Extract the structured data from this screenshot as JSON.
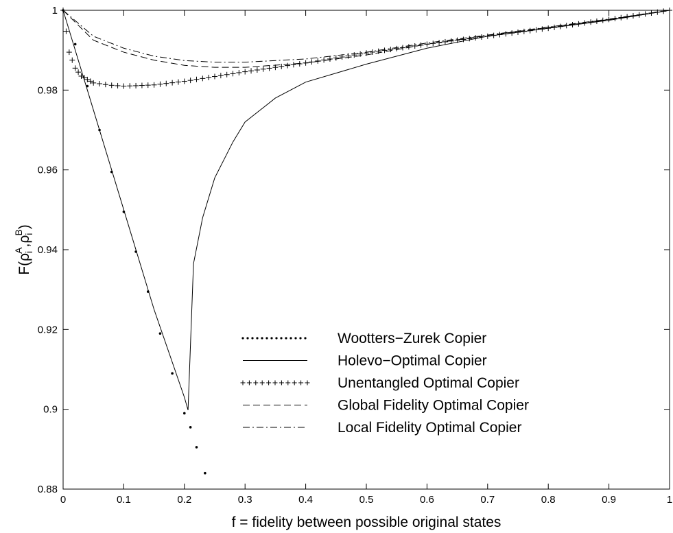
{
  "chart_data": {
    "type": "line",
    "xlabel": "f = fidelity between possible original states",
    "ylabel": "F(ρiA,ρiB)",
    "ylabel_parts": {
      "base": "F(ρ",
      "sub1": "i",
      "sup1": "A",
      "sep": ",ρ",
      "sub2": "i",
      "sup2": "B",
      "close": ")"
    },
    "xlim": [
      0,
      1
    ],
    "ylim": [
      0.88,
      1
    ],
    "xticks": [
      0,
      0.1,
      0.2,
      0.3,
      0.4,
      0.5,
      0.6,
      0.7,
      0.8,
      0.9,
      1
    ],
    "xtick_labels": [
      "0",
      "0.1",
      "0.2",
      "0.3",
      "0.4",
      "0.5",
      "0.6",
      "0.7",
      "0.8",
      "0.9",
      "1"
    ],
    "yticks": [
      0.88,
      0.9,
      0.92,
      0.94,
      0.96,
      0.98,
      1
    ],
    "ytick_labels": [
      "0.88",
      "0.9",
      "0.92",
      "0.94",
      "0.96",
      "0.98",
      "1"
    ],
    "grid": false,
    "legend_position": "bottom-right",
    "series": [
      {
        "name": "Wootters−Zurek Copier",
        "style": "dotted",
        "x": [
          0.0,
          0.02,
          0.04,
          0.06,
          0.08,
          0.1,
          0.12,
          0.14,
          0.16,
          0.18,
          0.2,
          0.21,
          0.22,
          0.234
        ],
        "y": [
          1.0,
          0.9915,
          0.981,
          0.97,
          0.9595,
          0.9495,
          0.9395,
          0.9295,
          0.919,
          0.909,
          0.899,
          0.8955,
          0.8905,
          0.884
        ]
      },
      {
        "name": "Holevo−Optimal Copier",
        "style": "solid",
        "x": [
          0.0,
          0.05,
          0.1,
          0.15,
          0.2,
          0.206,
          0.215,
          0.23,
          0.25,
          0.28,
          0.3,
          0.35,
          0.4,
          0.5,
          0.6,
          0.7,
          0.8,
          0.9,
          1.0
        ],
        "y": [
          1.0,
          0.975,
          0.95,
          0.925,
          0.903,
          0.8998,
          0.9365,
          0.948,
          0.958,
          0.967,
          0.972,
          0.978,
          0.982,
          0.9865,
          0.9905,
          0.9935,
          0.9955,
          0.9975,
          1.0
        ],
        "min_point": {
          "x": 0.206,
          "y": 0.8998
        }
      },
      {
        "name": "Unentangled Optimal Copier",
        "style": "plus",
        "x": [
          0.0,
          0.01,
          0.02,
          0.03,
          0.05,
          0.08,
          0.1,
          0.12,
          0.15,
          0.2,
          0.25,
          0.3,
          0.4,
          0.5,
          0.6,
          0.7,
          0.8,
          0.9,
          1.0
        ],
        "y": [
          1.0,
          0.9895,
          0.9855,
          0.9835,
          0.9818,
          0.9812,
          0.981,
          0.9811,
          0.9813,
          0.9822,
          0.9834,
          0.9846,
          0.9868,
          0.9893,
          0.9915,
          0.9935,
          0.9955,
          0.9977,
          1.0
        ]
      },
      {
        "name": "Global Fidelity Optimal Copier",
        "style": "dashed",
        "x": [
          0.0,
          0.05,
          0.1,
          0.15,
          0.2,
          0.25,
          0.3,
          0.4,
          0.5,
          0.6,
          0.7,
          0.8,
          0.9,
          1.0
        ],
        "y": [
          1.0,
          0.9925,
          0.9895,
          0.9875,
          0.9862,
          0.9857,
          0.9857,
          0.9868,
          0.9888,
          0.9915,
          0.9937,
          0.9957,
          0.9977,
          1.0
        ]
      },
      {
        "name": "Local Fidelity Optimal Copier",
        "style": "dashdot",
        "x": [
          0.0,
          0.05,
          0.1,
          0.15,
          0.2,
          0.25,
          0.3,
          0.4,
          0.5,
          0.6,
          0.7,
          0.8,
          0.9,
          1.0
        ],
        "y": [
          1.0,
          0.9935,
          0.9905,
          0.9885,
          0.9874,
          0.987,
          0.987,
          0.9878,
          0.9895,
          0.9918,
          0.9938,
          0.9958,
          0.9978,
          1.0
        ]
      }
    ]
  }
}
